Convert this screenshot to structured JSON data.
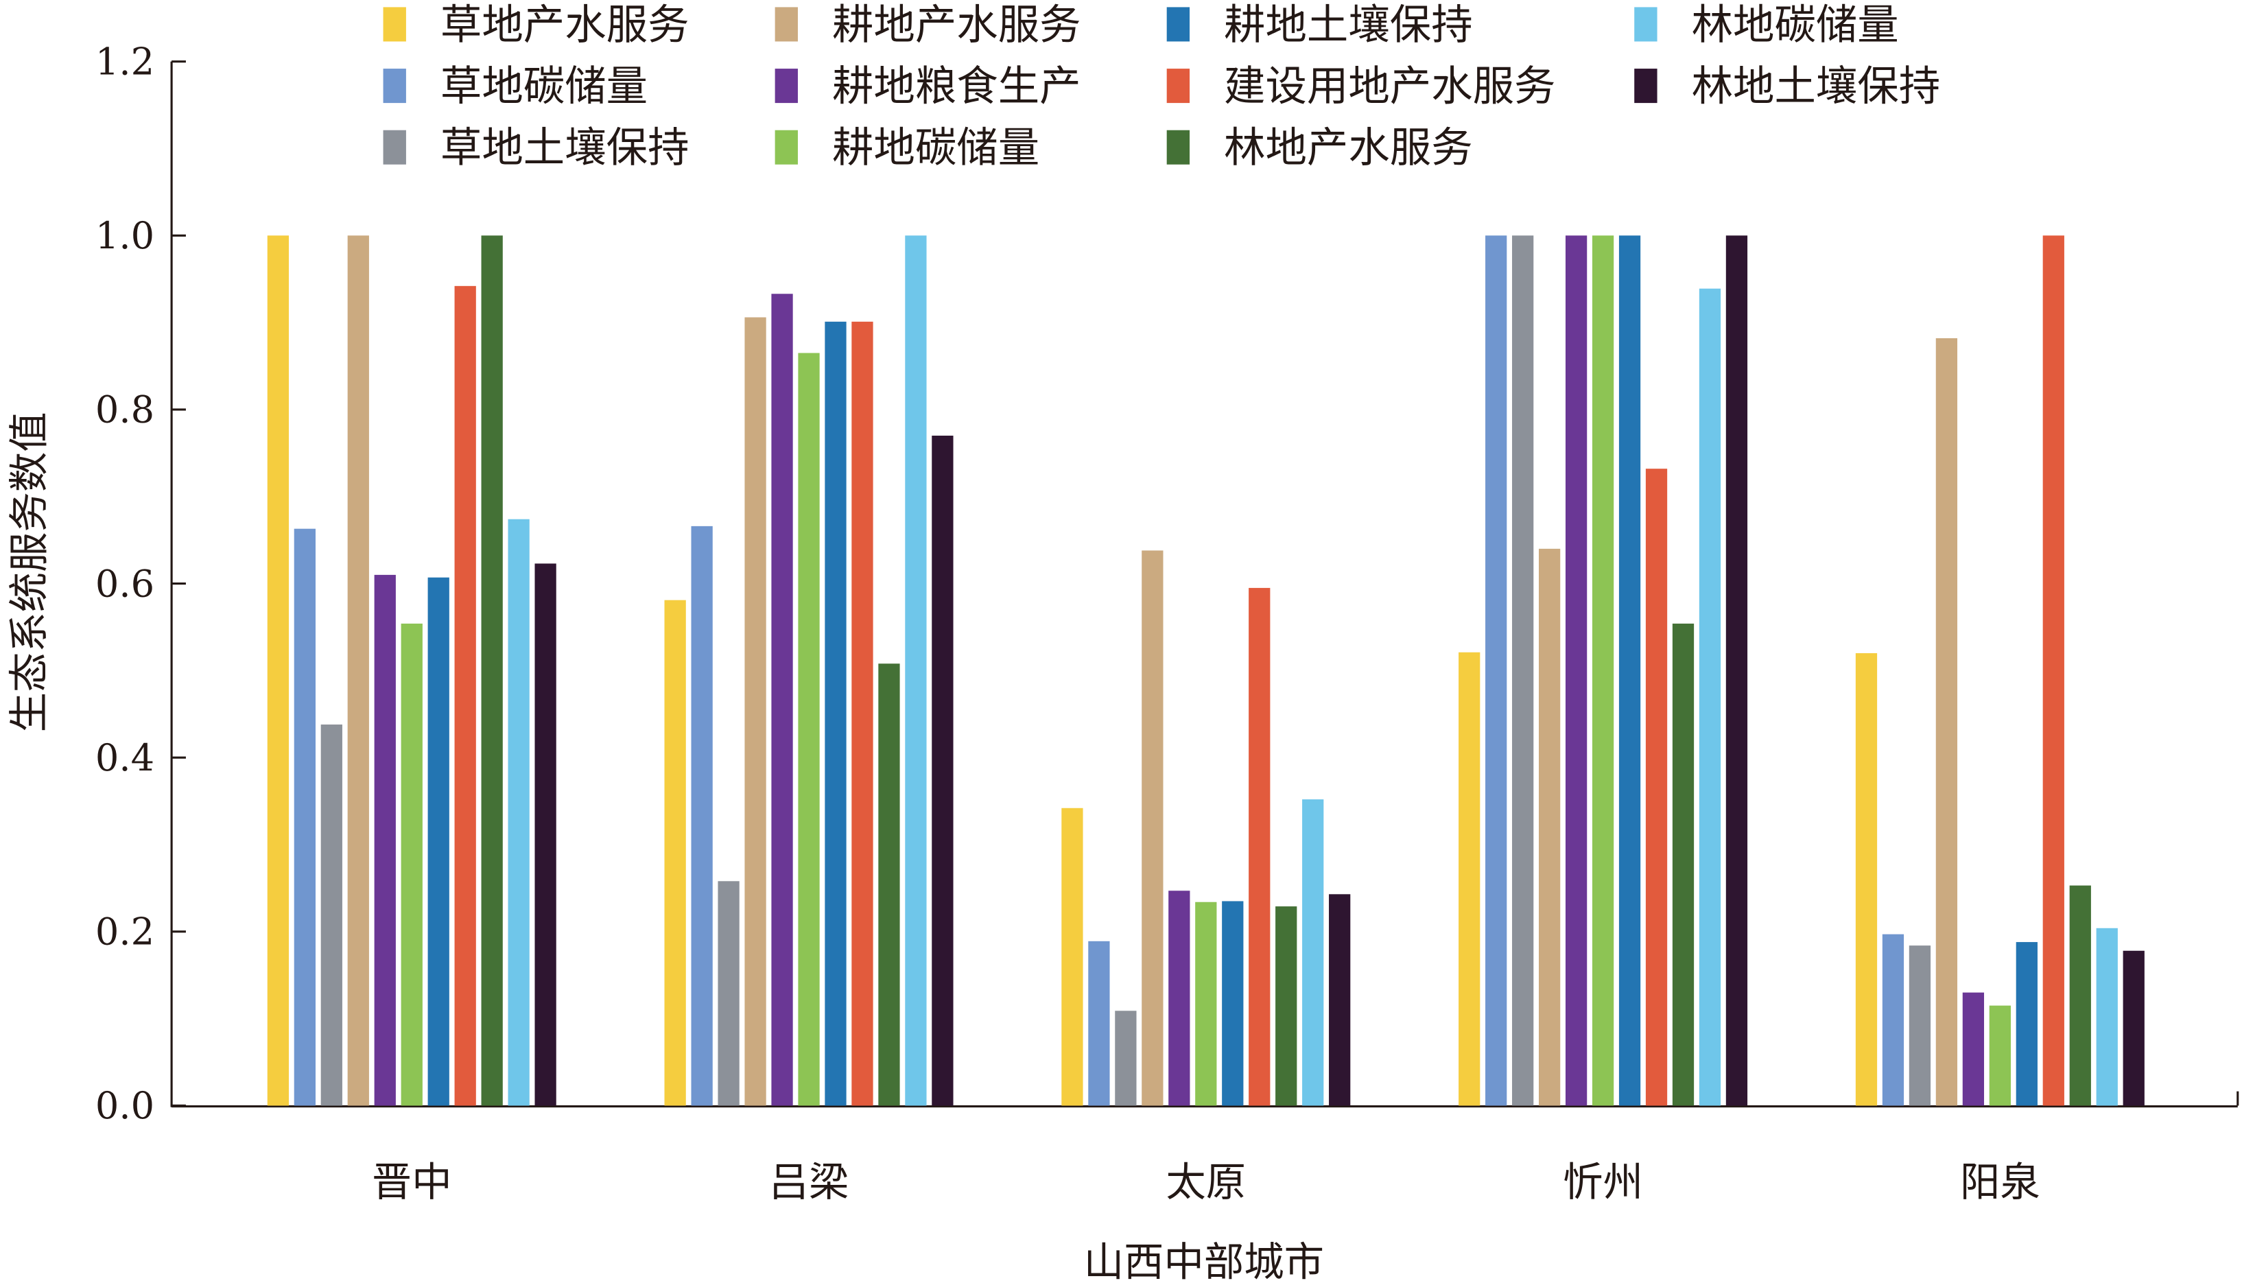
{
  "chart_data": {
    "type": "bar",
    "xlabel": "山西中部城市",
    "ylabel": "生态系统服务数值",
    "ylim": [
      0,
      1.2
    ],
    "yticks": [
      "0.0",
      "0.2",
      "0.4",
      "0.6",
      "0.8",
      "1.0",
      "1.2"
    ],
    "grid": false,
    "legend_placement": "top",
    "categories": [
      "晋中",
      "吕梁",
      "太原",
      "忻州",
      "阳泉"
    ],
    "series": [
      {
        "name": "草地产水服务",
        "color": "#F5CD3F",
        "values": [
          1.0,
          0.581,
          0.342,
          0.521,
          0.52
        ]
      },
      {
        "name": "草地碳储量",
        "color": "#7096CF",
        "values": [
          0.663,
          0.666,
          0.189,
          1.0,
          0.197
        ]
      },
      {
        "name": "草地土壤保持",
        "color": "#8C9199",
        "values": [
          0.438,
          0.258,
          0.109,
          1.0,
          0.184
        ]
      },
      {
        "name": "耕地产水服务",
        "color": "#CBAA80",
        "values": [
          1.0,
          0.906,
          0.638,
          0.64,
          0.882
        ]
      },
      {
        "name": "耕地粮食生产",
        "color": "#6A3795",
        "values": [
          0.61,
          0.933,
          0.247,
          1.0,
          0.13
        ]
      },
      {
        "name": "耕地碳储量",
        "color": "#8DC454",
        "values": [
          0.554,
          0.865,
          0.234,
          1.0,
          0.115
        ]
      },
      {
        "name": "耕地土壤保持",
        "color": "#2375B2",
        "values": [
          0.607,
          0.901,
          0.235,
          1.0,
          0.188
        ]
      },
      {
        "name": "建设用地产水服务",
        "color": "#E25B3D",
        "values": [
          0.942,
          0.901,
          0.595,
          0.732,
          1.0
        ]
      },
      {
        "name": "林地产水服务",
        "color": "#447136",
        "values": [
          1.0,
          0.508,
          0.229,
          0.554,
          0.253
        ]
      },
      {
        "name": "林地碳储量",
        "color": "#6FC6EA",
        "values": [
          0.674,
          1.0,
          0.352,
          0.939,
          0.204
        ]
      },
      {
        "name": "林地土壤保持",
        "color": "#2E1530",
        "values": [
          0.623,
          0.77,
          0.243,
          1.0,
          0.178
        ]
      }
    ]
  }
}
